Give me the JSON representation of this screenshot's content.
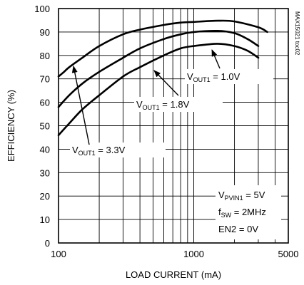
{
  "chart_data": {
    "type": "line",
    "xlabel": "LOAD CURRENT (mA)",
    "ylabel": "EFFICIENCY (%)",
    "xscale": "log",
    "xlim": [
      100,
      5000
    ],
    "ylim": [
      0,
      100
    ],
    "x_ticks": [
      100,
      1000,
      5000
    ],
    "x_tick_labels": [
      "100",
      "1000",
      "5000"
    ],
    "y_ticks": [
      0,
      10,
      20,
      30,
      40,
      50,
      60,
      70,
      80,
      90,
      100
    ],
    "y_tick_labels": [
      "0",
      "10",
      "20",
      "30",
      "40",
      "50",
      "60",
      "70",
      "80",
      "90",
      "100"
    ],
    "grid": true,
    "side_label": "MAX15021 toc02",
    "series": [
      {
        "name": "VOUT1 = 3.3V",
        "x": [
          100,
          110,
          120,
          150,
          200,
          300,
          400,
          600,
          800,
          1000,
          1500,
          2000,
          3000,
          3500
        ],
        "y": [
          71,
          73,
          75,
          79,
          84,
          89,
          91,
          93,
          94,
          94.3,
          94.8,
          94.5,
          92,
          90
        ]
      },
      {
        "name": "VOUT1 = 1.8V",
        "x": [
          100,
          120,
          150,
          200,
          300,
          400,
          600,
          800,
          1000,
          1500,
          2000,
          2500,
          3000
        ],
        "y": [
          58,
          63,
          68,
          73,
          79,
          83,
          87,
          89,
          90,
          90.5,
          89.5,
          87,
          84
        ]
      },
      {
        "name": "VOUT1 = 1.0V",
        "x": [
          100,
          120,
          150,
          200,
          300,
          400,
          600,
          800,
          1000,
          1500,
          2000,
          2500,
          3000
        ],
        "y": [
          46,
          51,
          57,
          63,
          71,
          75,
          80,
          83,
          84,
          85,
          84,
          82,
          79
        ]
      }
    ],
    "annotations": [
      {
        "id": "v33",
        "main": "V",
        "sub": "OUT1",
        "rest": " = 3.3V"
      },
      {
        "id": "v18",
        "main": "V",
        "sub": "OUT1",
        "rest": " = 1.8V"
      },
      {
        "id": "v10",
        "main": "V",
        "sub": "OUT1",
        "rest": " = 1.0V"
      }
    ],
    "conditions": [
      {
        "main": "V",
        "sub": "PVIN1",
        "rest": " = 5V"
      },
      {
        "main": "f",
        "sub": "SW",
        "rest": " = 2MHz"
      },
      {
        "main": "EN2 = 0V",
        "sub": "",
        "rest": ""
      }
    ]
  }
}
